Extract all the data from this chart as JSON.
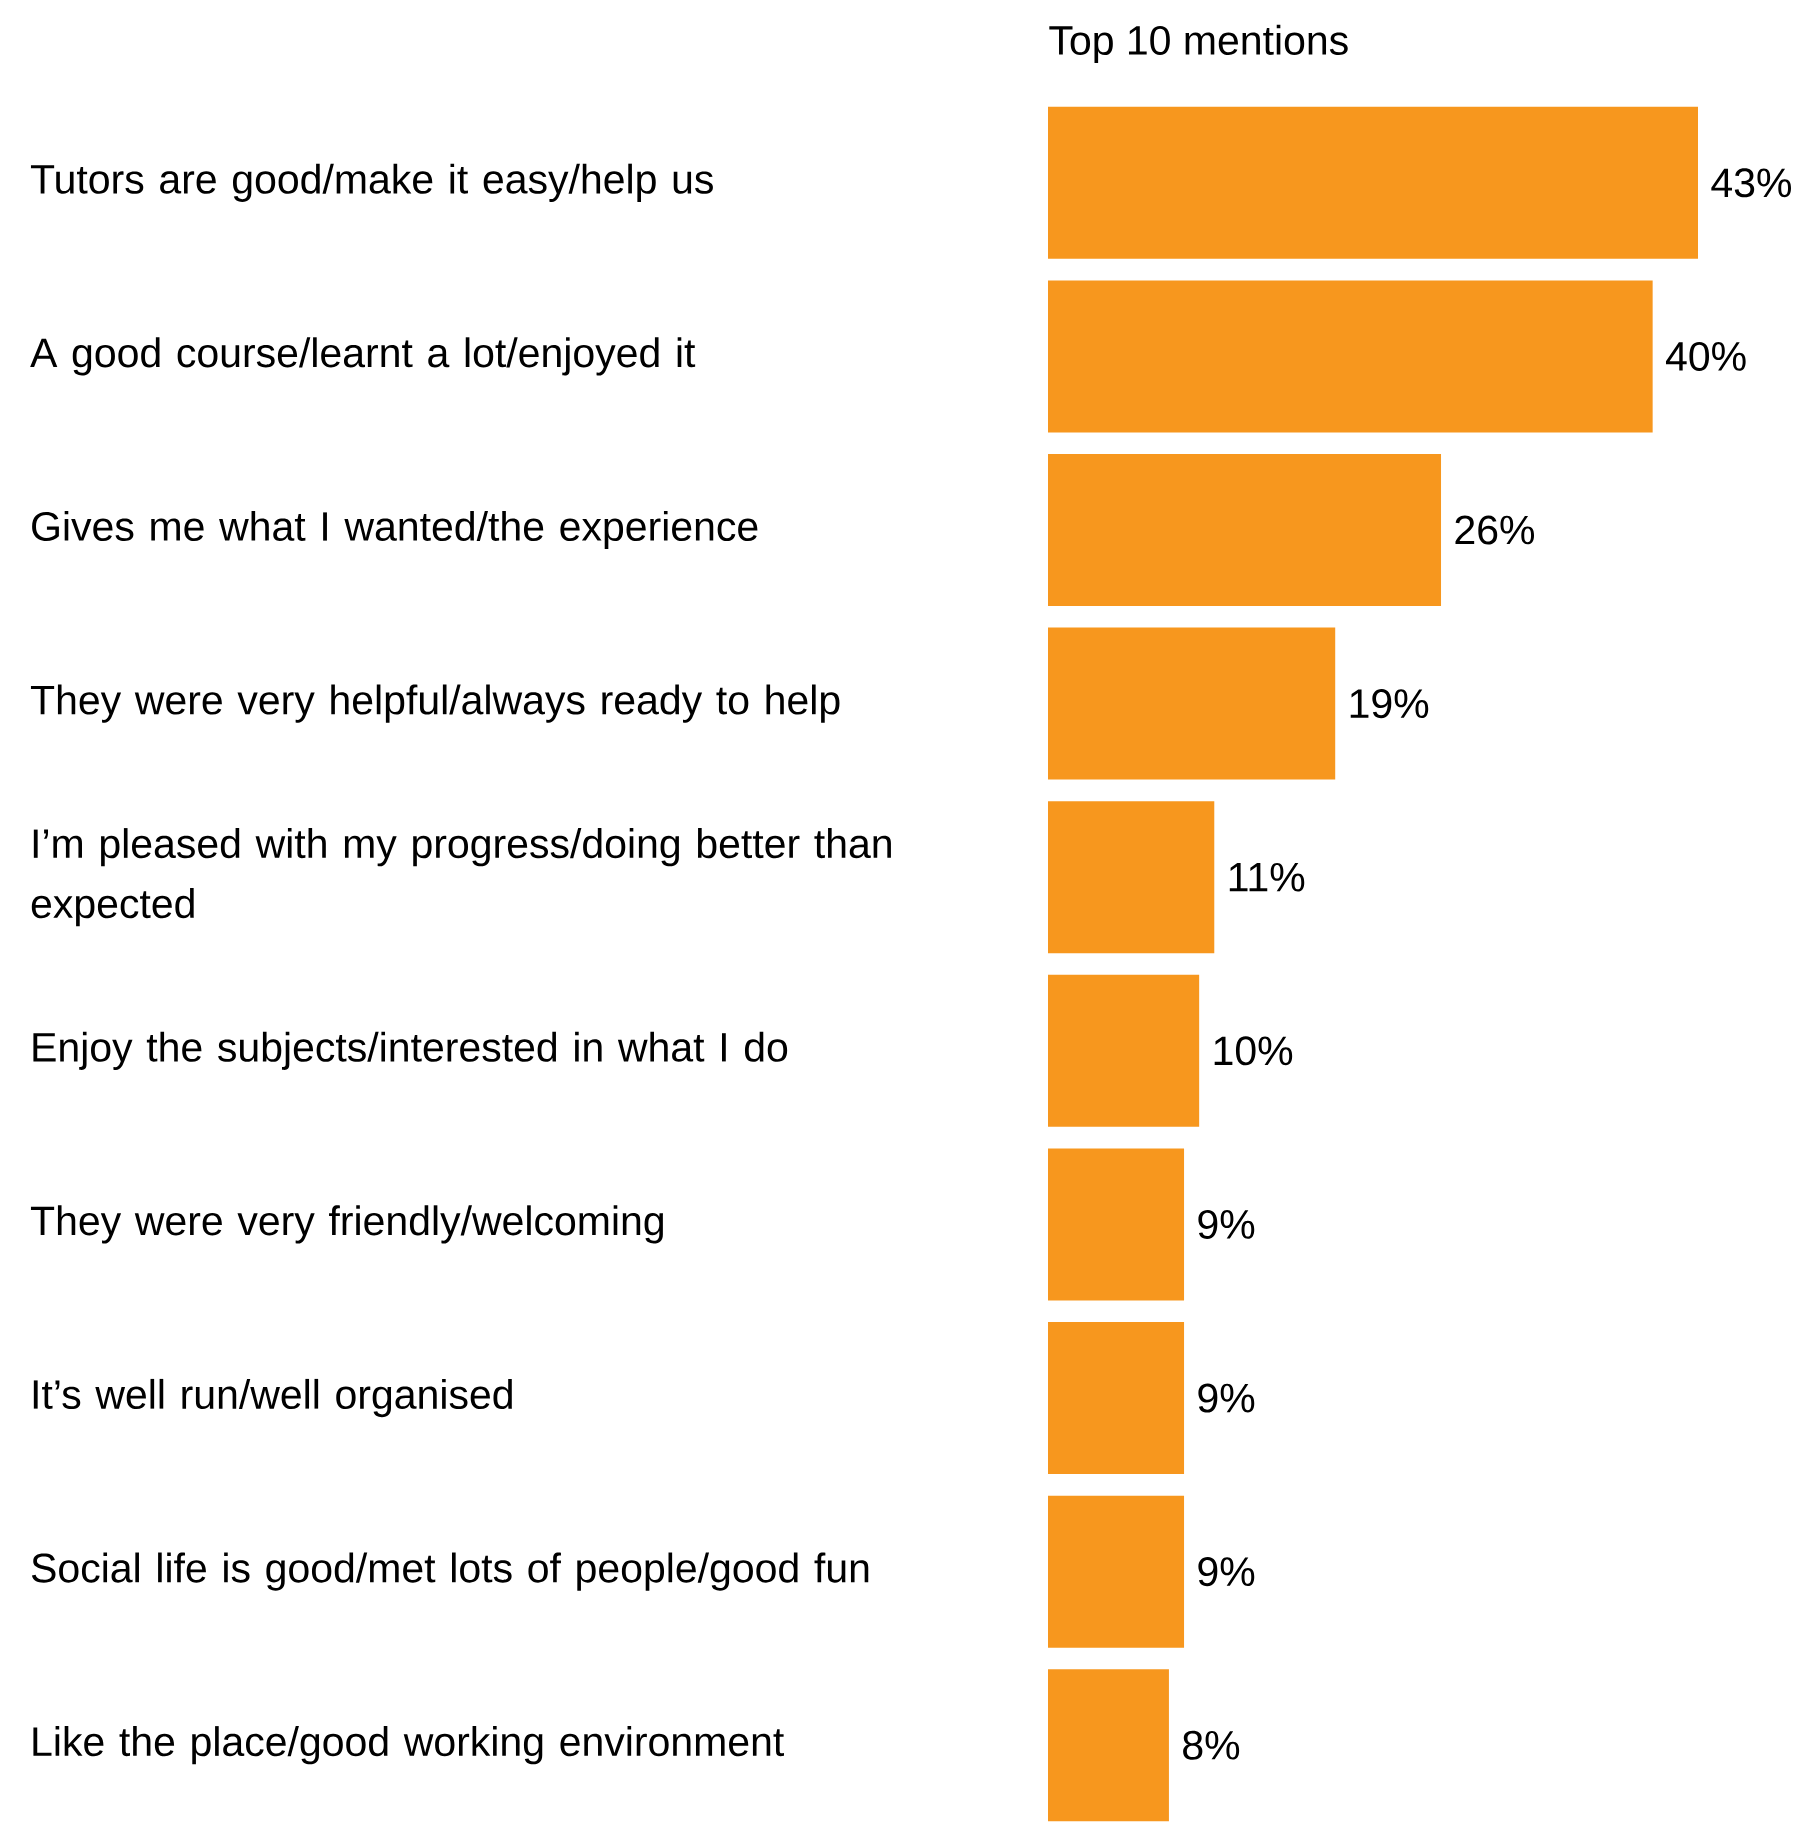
{
  "chart_data": {
    "type": "bar",
    "orientation": "horizontal",
    "title": "Top 10 mentions",
    "categories": [
      "Tutors are good/make it easy/help us",
      "A good course/learnt a lot/enjoyed it",
      "Gives me what I wanted/the experience",
      "They were very helpful/always ready to help",
      "I’m pleased with my progress/doing better than expected",
      "Enjoy the subjects/interested in what I do",
      "They were very friendly/welcoming",
      "It’s well run/well organised",
      "Social life is good/met lots of people/good fun",
      "Like the place/good working environment"
    ],
    "values": [
      43,
      40,
      26,
      19,
      11,
      10,
      9,
      9,
      9,
      8
    ],
    "value_labels": [
      "43%",
      "40%",
      "26%",
      "19%",
      "11%",
      "10%",
      "9%",
      "9%",
      "9%",
      "8%"
    ],
    "color": "#f7971e"
  }
}
